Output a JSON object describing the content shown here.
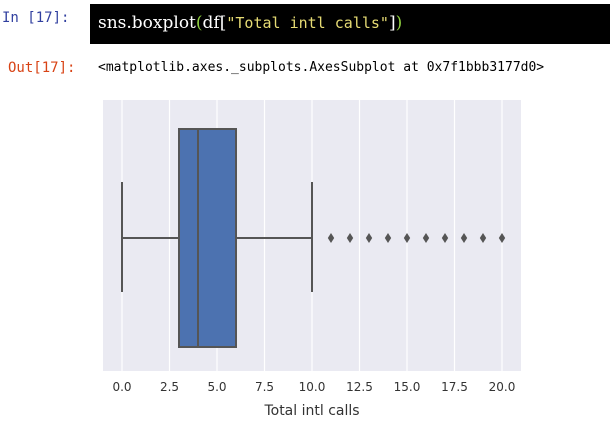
{
  "notebook": {
    "in_prompt": "In  [17]:",
    "out_prompt": "Out[17]:",
    "code": {
      "fn": "sns.boxplot",
      "open_paren": "(",
      "var": "df",
      "open_bracket": "[",
      "str": "\"Total intl calls\"",
      "close_bracket": "]",
      "close_paren": ")"
    },
    "output_text": "<matplotlib.axes._subplots.AxesSubplot at 0x7f1bbb3177d0>"
  },
  "colors": {
    "plot_background": "#eaeaf2",
    "grid": "#ffffff",
    "box_fill": "#4c72b0",
    "lines": "#555555"
  },
  "chart_data": {
    "type": "boxplot",
    "orientation": "horizontal",
    "xlabel": "Total intl calls",
    "xlim": [
      -1,
      21
    ],
    "ticks": [
      0.0,
      2.5,
      5.0,
      7.5,
      10.0,
      12.5,
      15.0,
      17.5,
      20.0
    ],
    "tick_labels": [
      "0.0",
      "2.5",
      "5.0",
      "7.5",
      "10.0",
      "12.5",
      "15.0",
      "17.5",
      "20.0"
    ],
    "grid": true,
    "box": {
      "whisker_low": 0,
      "q1": 3,
      "median": 4,
      "q3": 6,
      "whisker_high": 10
    },
    "outliers": [
      11,
      12,
      13,
      14,
      15,
      16,
      17,
      18,
      19,
      20
    ]
  }
}
